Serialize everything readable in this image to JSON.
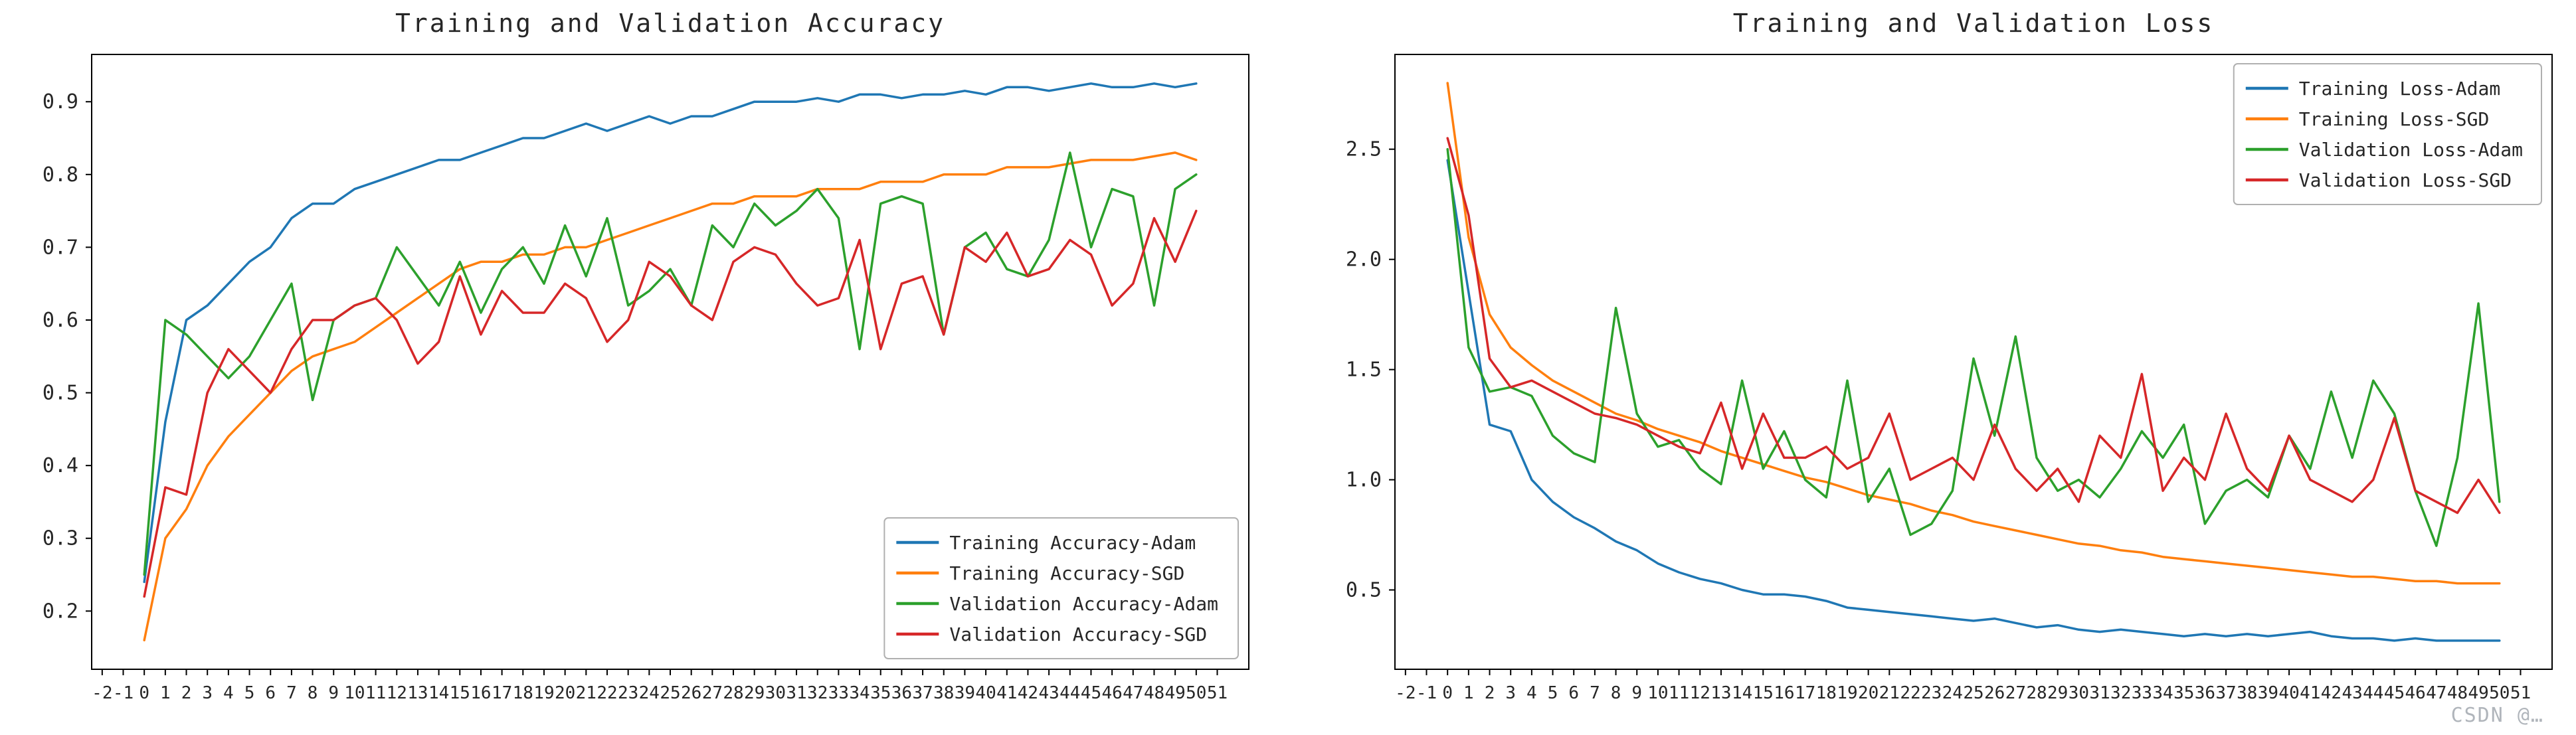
{
  "watermark": {
    "text": "CSDN @…",
    "color": "#a3a9b0"
  },
  "chart_data": [
    {
      "type": "line",
      "title": "Training and Validation Accuracy",
      "xlabel": "",
      "ylabel": "",
      "x_start": 0,
      "x_step": 1,
      "xlim": [
        -2.5,
        52.5
      ],
      "ylim": [
        0.12,
        0.965
      ],
      "xticks": {
        "min": -2,
        "max": 51,
        "step": 1
      },
      "yticks": [
        0.2,
        0.3,
        0.4,
        0.5,
        0.6,
        0.7,
        0.8,
        0.9
      ],
      "grid": false,
      "legend_position": "lower right",
      "series": [
        {
          "name": "Training Accuracy-Adam",
          "color": "#1f77b4",
          "values": [
            0.24,
            0.46,
            0.6,
            0.62,
            0.65,
            0.68,
            0.7,
            0.74,
            0.76,
            0.76,
            0.78,
            0.79,
            0.8,
            0.81,
            0.82,
            0.82,
            0.83,
            0.84,
            0.85,
            0.85,
            0.86,
            0.87,
            0.86,
            0.87,
            0.88,
            0.87,
            0.88,
            0.88,
            0.89,
            0.9,
            0.9,
            0.9,
            0.905,
            0.9,
            0.91,
            0.91,
            0.905,
            0.91,
            0.91,
            0.915,
            0.91,
            0.92,
            0.92,
            0.915,
            0.92,
            0.925,
            0.92,
            0.92,
            0.925,
            0.92,
            0.925
          ]
        },
        {
          "name": "Training Accuracy-SGD",
          "color": "#ff7f0e",
          "values": [
            0.16,
            0.3,
            0.34,
            0.4,
            0.44,
            0.47,
            0.5,
            0.53,
            0.55,
            0.56,
            0.57,
            0.59,
            0.61,
            0.63,
            0.65,
            0.67,
            0.68,
            0.68,
            0.69,
            0.69,
            0.7,
            0.7,
            0.71,
            0.72,
            0.73,
            0.74,
            0.75,
            0.76,
            0.76,
            0.77,
            0.77,
            0.77,
            0.78,
            0.78,
            0.78,
            0.79,
            0.79,
            0.79,
            0.8,
            0.8,
            0.8,
            0.81,
            0.81,
            0.81,
            0.815,
            0.82,
            0.82,
            0.82,
            0.825,
            0.83,
            0.82
          ]
        },
        {
          "name": "Validation Accuracy-Adam",
          "color": "#2ca02c",
          "values": [
            0.25,
            0.6,
            0.58,
            0.55,
            0.52,
            0.55,
            0.6,
            0.65,
            0.49,
            0.6,
            0.62,
            0.63,
            0.7,
            0.66,
            0.62,
            0.68,
            0.61,
            0.67,
            0.7,
            0.65,
            0.73,
            0.66,
            0.74,
            0.62,
            0.64,
            0.67,
            0.62,
            0.73,
            0.7,
            0.76,
            0.73,
            0.75,
            0.78,
            0.74,
            0.56,
            0.76,
            0.77,
            0.76,
            0.58,
            0.7,
            0.72,
            0.67,
            0.66,
            0.71,
            0.83,
            0.7,
            0.78,
            0.77,
            0.62,
            0.78,
            0.8
          ]
        },
        {
          "name": "Validation Accuracy-SGD",
          "color": "#d62728",
          "values": [
            0.22,
            0.37,
            0.36,
            0.5,
            0.56,
            0.53,
            0.5,
            0.56,
            0.6,
            0.6,
            0.62,
            0.63,
            0.6,
            0.54,
            0.57,
            0.66,
            0.58,
            0.64,
            0.61,
            0.61,
            0.65,
            0.63,
            0.57,
            0.6,
            0.68,
            0.66,
            0.62,
            0.6,
            0.68,
            0.7,
            0.69,
            0.65,
            0.62,
            0.63,
            0.71,
            0.56,
            0.65,
            0.66,
            0.58,
            0.7,
            0.68,
            0.72,
            0.66,
            0.67,
            0.71,
            0.69,
            0.62,
            0.65,
            0.74,
            0.68,
            0.75
          ]
        }
      ]
    },
    {
      "type": "line",
      "title": "Training and Validation Loss",
      "xlabel": "",
      "ylabel": "",
      "x_start": 0,
      "x_step": 1,
      "xlim": [
        -2.5,
        52.5
      ],
      "ylim": [
        0.14,
        2.93
      ],
      "xticks": {
        "min": -2,
        "max": 51,
        "step": 1
      },
      "yticks": [
        0.5,
        1.0,
        1.5,
        2.0,
        2.5
      ],
      "grid": false,
      "legend_position": "upper right",
      "series": [
        {
          "name": "Training Loss-Adam",
          "color": "#1f77b4",
          "values": [
            2.45,
            1.85,
            1.25,
            1.22,
            1.0,
            0.9,
            0.83,
            0.78,
            0.72,
            0.68,
            0.62,
            0.58,
            0.55,
            0.53,
            0.5,
            0.48,
            0.48,
            0.47,
            0.45,
            0.42,
            0.41,
            0.4,
            0.39,
            0.38,
            0.37,
            0.36,
            0.37,
            0.35,
            0.33,
            0.34,
            0.32,
            0.31,
            0.32,
            0.31,
            0.3,
            0.29,
            0.3,
            0.29,
            0.3,
            0.29,
            0.3,
            0.31,
            0.29,
            0.28,
            0.28,
            0.27,
            0.28,
            0.27,
            0.27,
            0.27,
            0.27
          ]
        },
        {
          "name": "Training Loss-SGD",
          "color": "#ff7f0e",
          "values": [
            2.8,
            2.1,
            1.75,
            1.6,
            1.52,
            1.45,
            1.4,
            1.35,
            1.3,
            1.27,
            1.23,
            1.2,
            1.17,
            1.13,
            1.1,
            1.07,
            1.04,
            1.01,
            0.99,
            0.96,
            0.93,
            0.91,
            0.89,
            0.86,
            0.84,
            0.81,
            0.79,
            0.77,
            0.75,
            0.73,
            0.71,
            0.7,
            0.68,
            0.67,
            0.65,
            0.64,
            0.63,
            0.62,
            0.61,
            0.6,
            0.59,
            0.58,
            0.57,
            0.56,
            0.56,
            0.55,
            0.54,
            0.54,
            0.53,
            0.53,
            0.53
          ]
        },
        {
          "name": "Validation Loss-Adam",
          "color": "#2ca02c",
          "values": [
            2.5,
            1.6,
            1.4,
            1.42,
            1.38,
            1.2,
            1.12,
            1.08,
            1.78,
            1.3,
            1.15,
            1.18,
            1.05,
            0.98,
            1.45,
            1.05,
            1.22,
            1.0,
            0.92,
            1.45,
            0.9,
            1.05,
            0.75,
            0.8,
            0.95,
            1.55,
            1.2,
            1.65,
            1.1,
            0.95,
            1.0,
            0.92,
            1.05,
            1.22,
            1.1,
            1.25,
            0.8,
            0.95,
            1.0,
            0.92,
            1.2,
            1.05,
            1.4,
            1.1,
            1.45,
            1.3,
            0.95,
            0.7,
            1.1,
            1.8,
            0.9
          ]
        },
        {
          "name": "Validation Loss-SGD",
          "color": "#d62728",
          "values": [
            2.55,
            2.2,
            1.55,
            1.42,
            1.45,
            1.4,
            1.35,
            1.3,
            1.28,
            1.25,
            1.2,
            1.15,
            1.12,
            1.35,
            1.05,
            1.3,
            1.1,
            1.1,
            1.15,
            1.05,
            1.1,
            1.3,
            1.0,
            1.05,
            1.1,
            1.0,
            1.25,
            1.05,
            0.95,
            1.05,
            0.9,
            1.2,
            1.1,
            1.48,
            0.95,
            1.1,
            1.0,
            1.3,
            1.05,
            0.95,
            1.2,
            1.0,
            0.95,
            0.9,
            1.0,
            1.28,
            0.95,
            0.9,
            0.85,
            1.0,
            0.85
          ]
        }
      ]
    }
  ],
  "style": {
    "axis_color": "#000000",
    "tick_label_color": "#262626",
    "title_color": "#262626",
    "legend_border_color": "#b0b0b0",
    "legend_bg": "#ffffff"
  }
}
